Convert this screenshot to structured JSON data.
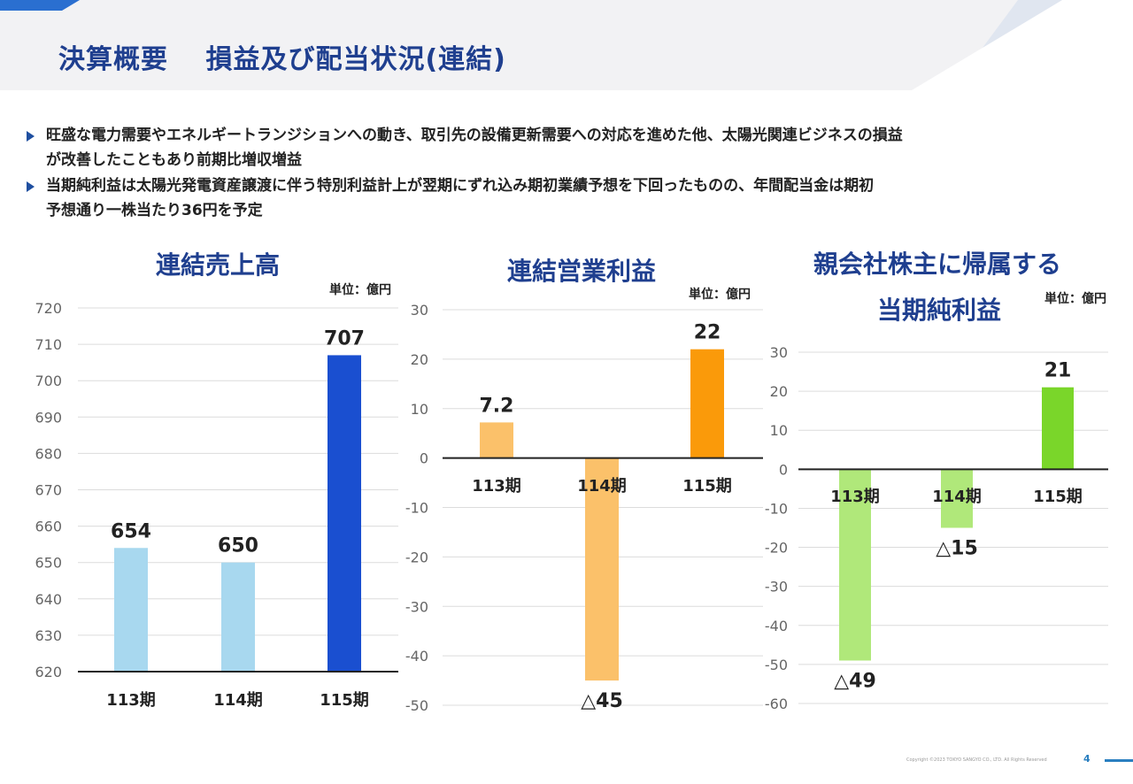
{
  "title": "決算概要　 損益及び配当状況(連結)",
  "bullets": [
    {
      "line1": "旺盛な電力需要やエネルギートランジションへの動き、取引先の設備更新需要への対応を進めた他、太陽光関連ビジネスの損益",
      "line2": "が改善したこともあり前期比増収増益"
    },
    {
      "line1": "当期純利益は太陽光発電資産譲渡に伴う特別利益計上が翌期にずれ込み期初業績予想を下回ったものの、年間配当金は期初",
      "line2": "予想通り一株当たり36円を予定"
    }
  ],
  "colors": {
    "header_bg": "#f2f2f4",
    "title": "#1f3f8f",
    "accent": "#1f4fa0"
  },
  "chart_data": [
    {
      "type": "bar",
      "title": "連結売上高",
      "unit_label": "単位：億円",
      "categories": [
        "113期",
        "114期",
        "115期"
      ],
      "values": [
        654,
        650,
        707
      ],
      "data_labels": [
        "654",
        "650",
        "707"
      ],
      "colors": [
        "#a8d8ef",
        "#a8d8ef",
        "#1a4fd0"
      ],
      "ylim": [
        620,
        720
      ],
      "yticks": [
        620,
        630,
        640,
        650,
        660,
        670,
        680,
        690,
        700,
        710,
        720
      ],
      "grid": true
    },
    {
      "type": "bar",
      "title": "連結営業利益",
      "unit_label": "単位：億円",
      "categories": [
        "113期",
        "114期",
        "115期"
      ],
      "values": [
        7.2,
        -45,
        22
      ],
      "data_labels": [
        "7.2",
        "△45",
        "22"
      ],
      "colors": [
        "#fbc16a",
        "#fbc16a",
        "#fa9a0a"
      ],
      "ylim": [
        -50,
        30
      ],
      "yticks": [
        -50,
        -40,
        -30,
        -20,
        -10,
        0,
        10,
        20,
        30
      ],
      "grid": true
    },
    {
      "type": "bar",
      "title": "親会社株主に帰属する",
      "title_line2": "当期純利益",
      "unit_label": "単位：億円",
      "categories": [
        "113期",
        "114期",
        "115期"
      ],
      "values": [
        -49,
        -15,
        21
      ],
      "data_labels": [
        "△49",
        "△15",
        "21"
      ],
      "colors": [
        "#b0e87a",
        "#b0e87a",
        "#7ad62a"
      ],
      "ylim": [
        -60,
        30
      ],
      "yticks": [
        -60,
        -50,
        -40,
        -30,
        -20,
        -10,
        0,
        10,
        20,
        30
      ],
      "grid": true
    }
  ],
  "footer": {
    "copyright": "Copyright ©2023 TOKYO SANGYO CO., LTD. All Rights Reserved",
    "page": "4"
  }
}
